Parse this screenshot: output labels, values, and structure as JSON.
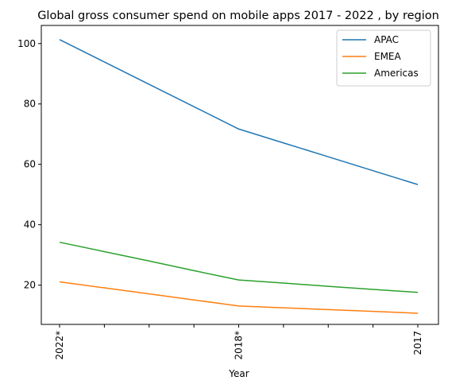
{
  "chart_data": {
    "type": "line",
    "title": "Global gross consumer spend on mobile apps 2017 - 2022 , by region",
    "xlabel": "Year",
    "ylabel": "",
    "x": [
      "2022*",
      "",
      "",
      "",
      "2018*",
      "",
      "",
      "",
      "2017"
    ],
    "y_ticks": [
      20,
      40,
      60,
      80,
      100
    ],
    "ylim": [
      7,
      106
    ],
    "grid": false,
    "legend_position": "top-right",
    "series": [
      {
        "name": "APAC",
        "color": "#1f77b4",
        "values": [
          101.3,
          93.9,
          86.5,
          79.1,
          71.7,
          67.1,
          62.5,
          57.9,
          53.3
        ]
      },
      {
        "name": "EMEA",
        "color": "#ff7f0e",
        "values": [
          21.1,
          19.1,
          17.1,
          15.1,
          13.1,
          12.5,
          11.9,
          11.3,
          10.7
        ]
      },
      {
        "name": "Americas",
        "color": "#2ca02c",
        "values": [
          34.2,
          31.1,
          28.0,
          24.8,
          21.7,
          20.7,
          19.6,
          18.6,
          17.6
        ]
      }
    ]
  }
}
